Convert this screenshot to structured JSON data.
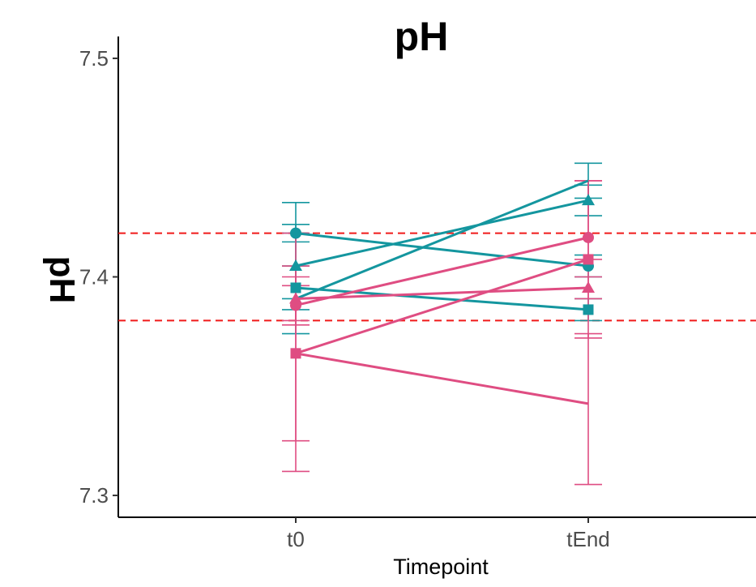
{
  "chart_data": {
    "type": "line",
    "title": "pH",
    "xlabel": "Timepoint",
    "ylabel": "pH",
    "categories": [
      "t0",
      "tEnd"
    ],
    "ylim": [
      7.29,
      7.51
    ],
    "yticks": [
      7.3,
      7.4,
      7.5
    ],
    "grid": false,
    "legend": "none",
    "reference_lines": [
      7.38,
      7.42
    ],
    "reference_line_color": "#f01a1a",
    "colors": {
      "teal": "#14969f",
      "pink": "#df4d82"
    },
    "series": [
      {
        "color": "#14969f",
        "marker": "circle",
        "values": [
          7.42,
          7.405
        ],
        "err_lo": [
          7.416,
          7.4
        ],
        "err_hi": [
          7.424,
          7.41
        ]
      },
      {
        "color": "#14969f",
        "marker": "triangle",
        "values": [
          7.405,
          7.435
        ],
        "err_lo": [
          7.39,
          7.428
        ],
        "err_hi": [
          7.42,
          7.442
        ]
      },
      {
        "color": "#14969f",
        "marker": "square",
        "values": [
          7.395,
          7.385
        ],
        "err_lo": [
          7.385,
          7.38
        ],
        "err_hi": [
          7.405,
          7.39
        ]
      },
      {
        "color": "#14969f",
        "marker": "none",
        "values": [
          7.39,
          7.444
        ],
        "err_lo": [
          7.374,
          7.436
        ],
        "err_hi": [
          7.434,
          7.452
        ]
      },
      {
        "color": "#df4d82",
        "marker": "circle",
        "values": [
          7.387,
          7.418
        ],
        "err_lo": [
          7.378,
          7.408
        ],
        "err_hi": [
          7.396,
          7.444
        ]
      },
      {
        "color": "#df4d82",
        "marker": "triangle",
        "values": [
          7.39,
          7.395
        ],
        "err_lo": [
          7.38,
          7.39
        ],
        "err_hi": [
          7.4,
          7.4
        ]
      },
      {
        "color": "#df4d82",
        "marker": "square",
        "values": [
          7.365,
          7.408
        ],
        "err_lo": [
          7.325,
          7.372
        ],
        "err_hi": [
          7.405,
          7.444
        ]
      },
      {
        "color": "#df4d82",
        "marker": "none",
        "values": [
          7.365,
          7.342
        ],
        "err_lo": [
          7.311,
          7.305
        ],
        "err_hi": [
          7.42,
          7.374
        ]
      }
    ]
  }
}
